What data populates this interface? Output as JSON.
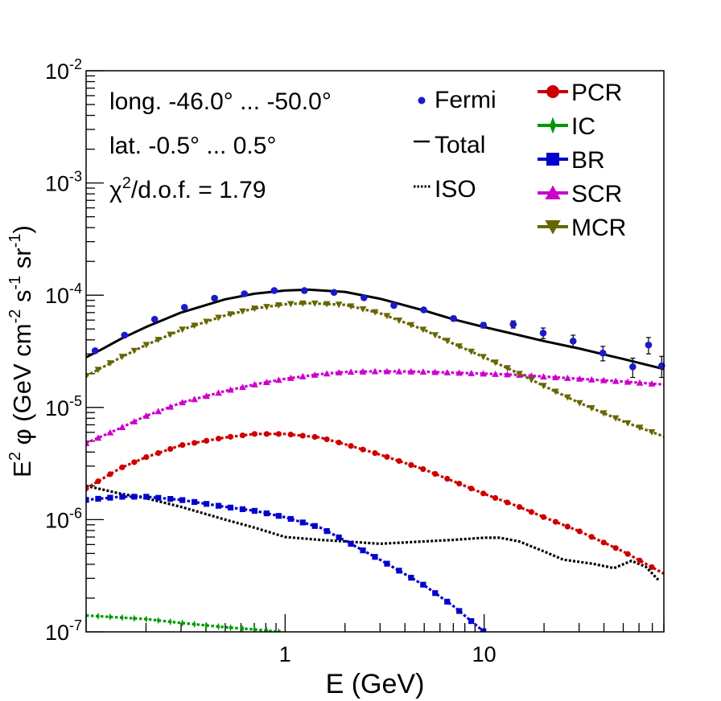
{
  "chart_data": {
    "type": "line",
    "xscale": "log",
    "yscale": "log",
    "xlim": [
      0.1,
      80
    ],
    "ylim": [
      1e-07,
      0.01
    ],
    "xlabel": "E (GeV)",
    "ylabel_parts": [
      "E",
      "2",
      " φ (GeV cm",
      "-2",
      " s",
      "-1",
      " sr",
      "-1",
      ")"
    ],
    "x_tick_labels": [
      {
        "value": 1,
        "label": "1"
      },
      {
        "value": 10,
        "label": "10"
      }
    ],
    "y_tick_labels": [
      {
        "value": 1e-07,
        "base": "10",
        "exp": "-7"
      },
      {
        "value": 1e-06,
        "base": "10",
        "exp": "-6"
      },
      {
        "value": 1e-05,
        "base": "10",
        "exp": "-5"
      },
      {
        "value": 0.0001,
        "base": "10",
        "exp": "-4"
      },
      {
        "value": 0.001,
        "base": "10",
        "exp": "-3"
      },
      {
        "value": 0.01,
        "base": "10",
        "exp": "-2"
      }
    ],
    "annotations": {
      "longitude": "long. -46.0° ... -50.0°",
      "latitude": "lat. -0.5° ... 0.5°",
      "chi_prefix": "χ",
      "chi_exp": "2",
      "chi_suffix": "/d.o.f. = 1.79"
    },
    "legend_left": [
      {
        "name": "Fermi",
        "color": "#1a1acc",
        "marker": "dot"
      },
      {
        "name": "Total",
        "color": "#000000",
        "marker": "line"
      },
      {
        "name": "ISO",
        "color": "#000000",
        "marker": "dotted"
      }
    ],
    "legend_right": [
      {
        "name": "PCR",
        "color": "#cc0000",
        "marker": "circle"
      },
      {
        "name": "IC",
        "color": "#009900",
        "marker": "star"
      },
      {
        "name": "BR",
        "color": "#0000cc",
        "marker": "square"
      },
      {
        "name": "SCR",
        "color": "#cc00cc",
        "marker": "triangle-up"
      },
      {
        "name": "MCR",
        "color": "#666600",
        "marker": "triangle-down"
      }
    ],
    "series": [
      {
        "key": "Total",
        "color": "#000000",
        "style": "solid",
        "points": [
          [
            0.1,
            2.8e-05
          ],
          [
            0.12,
            3.3e-05
          ],
          [
            0.15,
            4.1e-05
          ],
          [
            0.2,
            5.2e-05
          ],
          [
            0.3,
            7e-05
          ],
          [
            0.5,
            9.2e-05
          ],
          [
            0.7,
            0.000103
          ],
          [
            1,
            0.00011
          ],
          [
            1.3,
            0.000112
          ],
          [
            2,
            0.000107
          ],
          [
            3,
            9.3e-05
          ],
          [
            5,
            7.3e-05
          ],
          [
            7,
            6.1e-05
          ],
          [
            10,
            5.2e-05
          ],
          [
            15,
            4.4e-05
          ],
          [
            20,
            3.9e-05
          ],
          [
            30,
            3.35e-05
          ],
          [
            50,
            2.7e-05
          ],
          [
            80,
            2.2e-05
          ]
        ]
      },
      {
        "key": "ISO",
        "color": "#000000",
        "style": "dotted",
        "points": [
          [
            0.1,
            2e-06
          ],
          [
            0.15,
            1.7e-06
          ],
          [
            0.2,
            1.55e-06
          ],
          [
            0.3,
            1.3e-06
          ],
          [
            0.5,
            1e-06
          ],
          [
            0.7,
            8.5e-07
          ],
          [
            1,
            7e-07
          ],
          [
            1.5,
            6.6e-07
          ],
          [
            2,
            6.4e-07
          ],
          [
            3,
            6.1e-07
          ],
          [
            5,
            6.4e-07
          ],
          [
            7,
            6.6e-07
          ],
          [
            10,
            6.9e-07
          ],
          [
            12,
            6.9e-07
          ],
          [
            15,
            6.4e-07
          ],
          [
            20,
            5.2e-07
          ],
          [
            25,
            4.4e-07
          ],
          [
            35,
            4.05e-07
          ],
          [
            45,
            3.7e-07
          ],
          [
            55,
            4.3e-07
          ],
          [
            65,
            3.8e-07
          ],
          [
            75,
            2.9e-07
          ]
        ]
      },
      {
        "key": "PCR",
        "color": "#cc0000",
        "style": "dashed",
        "marker": "circle",
        "points": [
          [
            0.1,
            1.9e-06
          ],
          [
            0.15,
            2.9e-06
          ],
          [
            0.2,
            3.6e-06
          ],
          [
            0.3,
            4.6e-06
          ],
          [
            0.5,
            5.4e-06
          ],
          [
            0.7,
            5.8e-06
          ],
          [
            1,
            5.8e-06
          ],
          [
            1.5,
            5.4e-06
          ],
          [
            2,
            4.7e-06
          ],
          [
            3,
            3.8e-06
          ],
          [
            5,
            2.8e-06
          ],
          [
            7,
            2.2e-06
          ],
          [
            10,
            1.7e-06
          ],
          [
            15,
            1.3e-06
          ],
          [
            20,
            1.05e-06
          ],
          [
            30,
            7.9e-07
          ],
          [
            50,
            5.2e-07
          ],
          [
            80,
            3.3e-07
          ]
        ]
      },
      {
        "key": "IC",
        "color": "#009900",
        "style": "dashed",
        "marker": "star",
        "points": [
          [
            0.1,
            1.4e-07
          ],
          [
            0.2,
            1.3e-07
          ],
          [
            0.3,
            1.2e-07
          ],
          [
            0.5,
            1.1e-07
          ],
          [
            0.7,
            1.05e-07
          ],
          [
            0.95,
            1e-07
          ]
        ]
      },
      {
        "key": "BR",
        "color": "#0000cc",
        "style": "dashed",
        "marker": "square",
        "points": [
          [
            0.1,
            1.5e-06
          ],
          [
            0.15,
            1.6e-06
          ],
          [
            0.2,
            1.6e-06
          ],
          [
            0.3,
            1.5e-06
          ],
          [
            0.5,
            1.3e-06
          ],
          [
            0.7,
            1.2e-06
          ],
          [
            1,
            1.05e-06
          ],
          [
            1.5,
            8.5e-07
          ],
          [
            2,
            6.5e-07
          ],
          [
            3,
            4.4e-07
          ],
          [
            5,
            2.6e-07
          ],
          [
            7,
            1.7e-07
          ],
          [
            10,
            1e-07
          ]
        ]
      },
      {
        "key": "SCR",
        "color": "#cc00cc",
        "style": "dashed",
        "marker": "triangle-up",
        "points": [
          [
            0.1,
            4.8e-06
          ],
          [
            0.15,
            6.6e-06
          ],
          [
            0.2,
            8.4e-06
          ],
          [
            0.3,
            1.1e-05
          ],
          [
            0.5,
            1.4e-05
          ],
          [
            0.7,
            1.6e-05
          ],
          [
            1,
            1.8e-05
          ],
          [
            1.5,
            1.98e-05
          ],
          [
            2,
            2.07e-05
          ],
          [
            3,
            2.1e-05
          ],
          [
            5,
            2.08e-05
          ],
          [
            7,
            2.04e-05
          ],
          [
            10,
            2e-05
          ],
          [
            15,
            1.95e-05
          ],
          [
            20,
            1.88e-05
          ],
          [
            30,
            1.8e-05
          ],
          [
            50,
            1.7e-05
          ],
          [
            80,
            1.6e-05
          ]
        ]
      },
      {
        "key": "MCR",
        "color": "#666600",
        "style": "dashed",
        "marker": "triangle-down",
        "points": [
          [
            0.1,
            1.9e-05
          ],
          [
            0.15,
            2.8e-05
          ],
          [
            0.2,
            3.6e-05
          ],
          [
            0.3,
            4.9e-05
          ],
          [
            0.5,
            6.6e-05
          ],
          [
            0.7,
            7.6e-05
          ],
          [
            1,
            8.3e-05
          ],
          [
            1.3,
            8.5e-05
          ],
          [
            2,
            8.2e-05
          ],
          [
            3,
            6.9e-05
          ],
          [
            5,
            4.9e-05
          ],
          [
            7,
            3.7e-05
          ],
          [
            10,
            2.8e-05
          ],
          [
            15,
            2e-05
          ],
          [
            20,
            1.55e-05
          ],
          [
            30,
            1.1e-05
          ],
          [
            50,
            7.5e-06
          ],
          [
            80,
            5.5e-06
          ]
        ]
      }
    ],
    "fermi_points": [
      {
        "x": 0.111,
        "y": 3.2e-05,
        "err": 1e-06
      },
      {
        "x": 0.156,
        "y": 4.4e-05,
        "err": 1e-06
      },
      {
        "x": 0.221,
        "y": 6.1e-05,
        "err": 2e-06
      },
      {
        "x": 0.312,
        "y": 7.8e-05,
        "err": 2e-06
      },
      {
        "x": 0.442,
        "y": 9.4e-05,
        "err": 2e-06
      },
      {
        "x": 0.624,
        "y": 0.000103,
        "err": 3e-06
      },
      {
        "x": 0.882,
        "y": 0.00011,
        "err": 3e-06
      },
      {
        "x": 1.25,
        "y": 0.00011,
        "err": 3e-06
      },
      {
        "x": 1.76,
        "y": 0.000106,
        "err": 3e-06
      },
      {
        "x": 2.49,
        "y": 9.5e-05,
        "err": 3e-06
      },
      {
        "x": 3.52,
        "y": 8.1e-05,
        "err": 3e-06
      },
      {
        "x": 4.97,
        "y": 7.4e-05,
        "err": 3e-06
      },
      {
        "x": 7.02,
        "y": 6.2e-05,
        "err": 3e-06
      },
      {
        "x": 9.92,
        "y": 5.4e-05,
        "err": 3e-06
      },
      {
        "x": 14.0,
        "y": 5.5e-05,
        "err": 4e-06
      },
      {
        "x": 19.8,
        "y": 4.6e-05,
        "err": 5e-06
      },
      {
        "x": 28.0,
        "y": 3.9e-05,
        "err": 5e-06
      },
      {
        "x": 39.5,
        "y": 3.05e-05,
        "err": 4.5e-06
      },
      {
        "x": 55.8,
        "y": 2.3e-05,
        "err": 4.5e-06
      },
      {
        "x": 67,
        "y": 3.6e-05,
        "err": 6e-06
      },
      {
        "x": 78,
        "y": 2.35e-05,
        "err": 5e-06
      }
    ]
  }
}
